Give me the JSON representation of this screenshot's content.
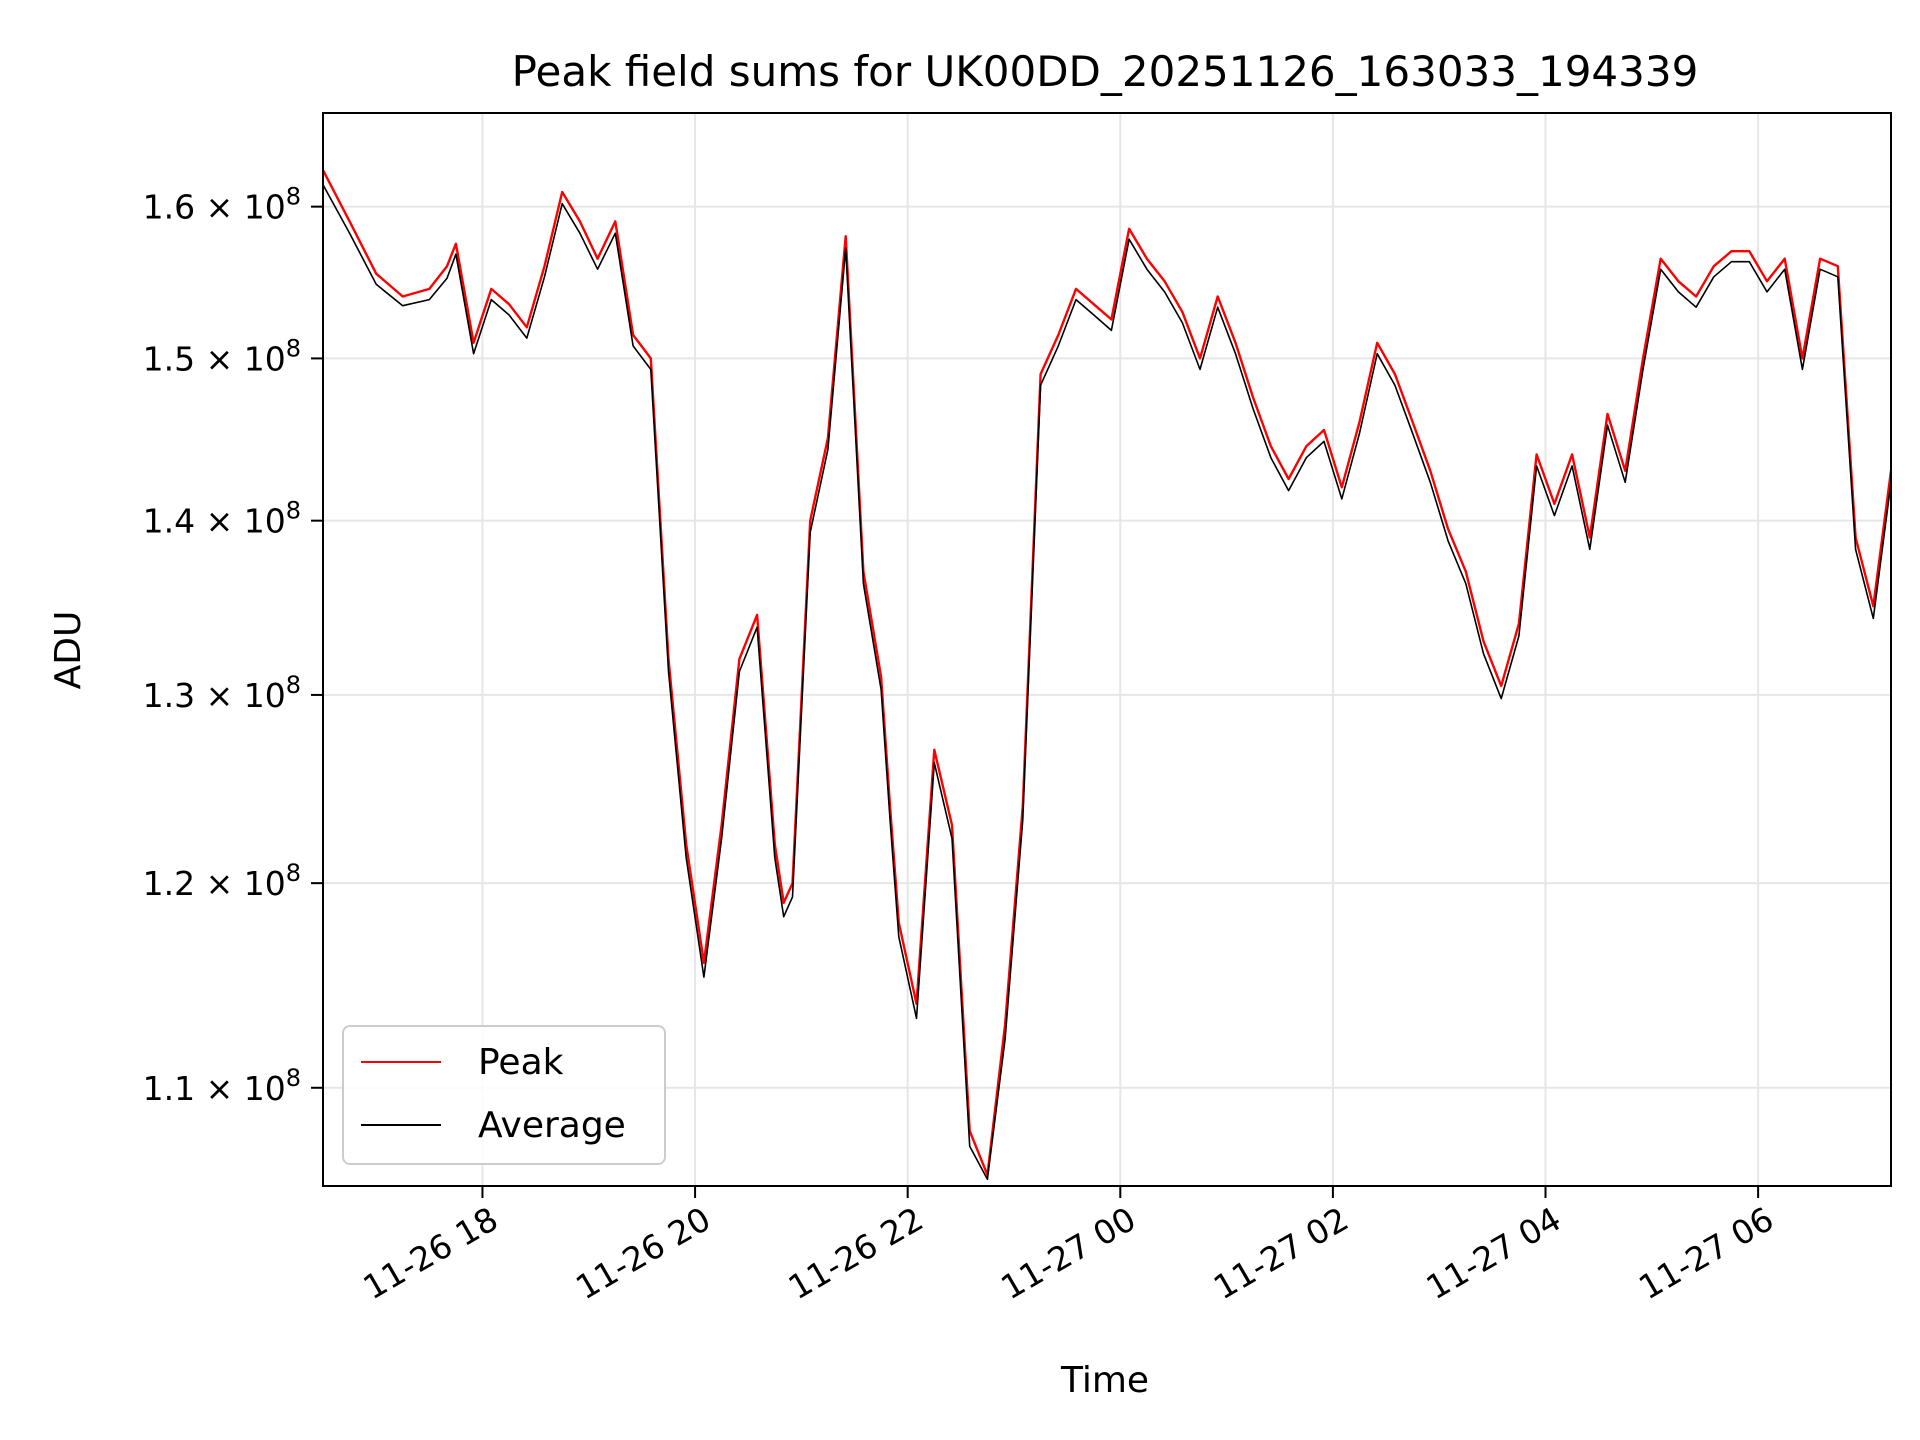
{
  "chart_data": {
    "type": "line",
    "title": "Peak field sums for UK00DD_20251126_163033_194339",
    "xlabel": "Time",
    "ylabel": "ADU",
    "yscale": "log",
    "grid": true,
    "legend_position": "lower-left",
    "xlim": [
      "2025-11-26 16:30",
      "2025-11-27 07:15"
    ],
    "ylim": [
      105500000.0,
      166500000.0
    ],
    "x_ticks": [
      {
        "value": "2025-11-26 18:00",
        "label": "11-26 18"
      },
      {
        "value": "2025-11-26 20:00",
        "label": "11-26 20"
      },
      {
        "value": "2025-11-26 22:00",
        "label": "11-26 22"
      },
      {
        "value": "2025-11-27 00:00",
        "label": "11-27 00"
      },
      {
        "value": "2025-11-27 02:00",
        "label": "11-27 02"
      },
      {
        "value": "2025-11-27 04:00",
        "label": "11-27 04"
      },
      {
        "value": "2025-11-27 06:00",
        "label": "11-27 06"
      }
    ],
    "y_ticks": [
      {
        "value": 110000000.0,
        "mantissa": "1.1",
        "exponent": "8"
      },
      {
        "value": 120000000.0,
        "mantissa": "1.2",
        "exponent": "8"
      },
      {
        "value": 130000000.0,
        "mantissa": "1.3",
        "exponent": "8"
      },
      {
        "value": 140000000.0,
        "mantissa": "1.4",
        "exponent": "8"
      },
      {
        "value": 150000000.0,
        "mantissa": "1.5",
        "exponent": "8"
      },
      {
        "value": 160000000.0,
        "mantissa": "1.6",
        "exponent": "8"
      }
    ],
    "series": [
      {
        "name": "Peak",
        "color": "#ff0000",
        "x": [
          "2025-11-26 16:30",
          "2025-11-26 16:45",
          "2025-11-26 17:00",
          "2025-11-26 17:15",
          "2025-11-26 17:30",
          "2025-11-26 17:40",
          "2025-11-26 17:45",
          "2025-11-26 17:55",
          "2025-11-26 18:05",
          "2025-11-26 18:15",
          "2025-11-26 18:25",
          "2025-11-26 18:35",
          "2025-11-26 18:45",
          "2025-11-26 18:55",
          "2025-11-26 19:05",
          "2025-11-26 19:15",
          "2025-11-26 19:25",
          "2025-11-26 19:35",
          "2025-11-26 19:45",
          "2025-11-26 19:55",
          "2025-11-26 20:05",
          "2025-11-26 20:15",
          "2025-11-26 20:25",
          "2025-11-26 20:35",
          "2025-11-26 20:45",
          "2025-11-26 20:50",
          "2025-11-26 20:55",
          "2025-11-26 21:05",
          "2025-11-26 21:15",
          "2025-11-26 21:25",
          "2025-11-26 21:35",
          "2025-11-26 21:45",
          "2025-11-26 21:50",
          "2025-11-26 21:55",
          "2025-11-26 22:05",
          "2025-11-26 22:15",
          "2025-11-26 22:25",
          "2025-11-26 22:35",
          "2025-11-26 22:45",
          "2025-11-26 22:55",
          "2025-11-26 23:05",
          "2025-11-26 23:15",
          "2025-11-26 23:25",
          "2025-11-26 23:35",
          "2025-11-26 23:45",
          "2025-11-26 23:55",
          "2025-11-27 00:05",
          "2025-11-27 00:15",
          "2025-11-27 00:25",
          "2025-11-27 00:35",
          "2025-11-27 00:45",
          "2025-11-27 00:55",
          "2025-11-27 01:05",
          "2025-11-27 01:15",
          "2025-11-27 01:25",
          "2025-11-27 01:35",
          "2025-11-27 01:45",
          "2025-11-27 01:55",
          "2025-11-27 02:05",
          "2025-11-27 02:15",
          "2025-11-27 02:25",
          "2025-11-27 02:35",
          "2025-11-27 02:45",
          "2025-11-27 02:55",
          "2025-11-27 03:05",
          "2025-11-27 03:15",
          "2025-11-27 03:25",
          "2025-11-27 03:35",
          "2025-11-27 03:45",
          "2025-11-27 03:55",
          "2025-11-27 04:05",
          "2025-11-27 04:15",
          "2025-11-27 04:25",
          "2025-11-27 04:35",
          "2025-11-27 04:45",
          "2025-11-27 04:55",
          "2025-11-27 05:05",
          "2025-11-27 05:15",
          "2025-11-27 05:25",
          "2025-11-27 05:35",
          "2025-11-27 05:45",
          "2025-11-27 05:55",
          "2025-11-27 06:05",
          "2025-11-27 06:15",
          "2025-11-27 06:25",
          "2025-11-27 06:35",
          "2025-11-27 06:45",
          "2025-11-27 06:55",
          "2025-11-27 07:05",
          "2025-11-27 07:15"
        ],
        "values": [
          162500000.0,
          159000000.0,
          155500000.0,
          154000000.0,
          154500000.0,
          156000000.0,
          157500000.0,
          151000000.0,
          154500000.0,
          153500000.0,
          152000000.0,
          156000000.0,
          161000000.0,
          159000000.0,
          156500000.0,
          159000000.0,
          151500000.0,
          150000000.0,
          132000000.0,
          122000000.0,
          116000000.0,
          123000000.0,
          132000000.0,
          134500000.0,
          122000000.0,
          119000000.0,
          120000000.0,
          140000000.0,
          145000000.0,
          158000000.0,
          137000000.0,
          131000000.0,
          124000000.0,
          118000000.0,
          114000000.0,
          127000000.0,
          123000000.0,
          108000000.0,
          106000000.0,
          113000000.0,
          124000000.0,
          149000000.0,
          151500000.0,
          154500000.0,
          153500000.0,
          152500000.0,
          158500000.0,
          156500000.0,
          155000000.0,
          153000000.0,
          150000000.0,
          154000000.0,
          151000000.0,
          147500000.0,
          144500000.0,
          142500000.0,
          144500000.0,
          145500000.0,
          142000000.0,
          146000000.0,
          151000000.0,
          149000000.0,
          146000000.0,
          143000000.0,
          139500000.0,
          137000000.0,
          133000000.0,
          130500000.0,
          134000000.0,
          144000000.0,
          141000000.0,
          144000000.0,
          139000000.0,
          146500000.0,
          143000000.0,
          150000000.0,
          156500000.0,
          155000000.0,
          154000000.0,
          156000000.0,
          157000000.0,
          157000000.0,
          155000000.0,
          156500000.0,
          150000000.0,
          156500000.0,
          156000000.0,
          139000000.0,
          135000000.0,
          143000000.0
        ]
      },
      {
        "name": "Average",
        "color": "#000000",
        "x": [
          "2025-11-26 16:30",
          "2025-11-26 16:45",
          "2025-11-26 17:00",
          "2025-11-26 17:15",
          "2025-11-26 17:30",
          "2025-11-26 17:40",
          "2025-11-26 17:45",
          "2025-11-26 17:55",
          "2025-11-26 18:05",
          "2025-11-26 18:15",
          "2025-11-26 18:25",
          "2025-11-26 18:35",
          "2025-11-26 18:45",
          "2025-11-26 18:55",
          "2025-11-26 19:05",
          "2025-11-26 19:15",
          "2025-11-26 19:25",
          "2025-11-26 19:35",
          "2025-11-26 19:45",
          "2025-11-26 19:55",
          "2025-11-26 20:05",
          "2025-11-26 20:15",
          "2025-11-26 20:25",
          "2025-11-26 20:35",
          "2025-11-26 20:45",
          "2025-11-26 20:50",
          "2025-11-26 20:55",
          "2025-11-26 21:05",
          "2025-11-26 21:15",
          "2025-11-26 21:25",
          "2025-11-26 21:35",
          "2025-11-26 21:45",
          "2025-11-26 21:50",
          "2025-11-26 21:55",
          "2025-11-26 22:05",
          "2025-11-26 22:15",
          "2025-11-26 22:25",
          "2025-11-26 22:35",
          "2025-11-26 22:45",
          "2025-11-26 22:55",
          "2025-11-26 23:05",
          "2025-11-26 23:15",
          "2025-11-26 23:25",
          "2025-11-26 23:35",
          "2025-11-26 23:45",
          "2025-11-26 23:55",
          "2025-11-27 00:05",
          "2025-11-27 00:15",
          "2025-11-27 00:25",
          "2025-11-27 00:35",
          "2025-11-27 00:45",
          "2025-11-27 00:55",
          "2025-11-27 01:05",
          "2025-11-27 01:15",
          "2025-11-27 01:25",
          "2025-11-27 01:35",
          "2025-11-27 01:45",
          "2025-11-27 01:55",
          "2025-11-27 02:05",
          "2025-11-27 02:15",
          "2025-11-27 02:25",
          "2025-11-27 02:35",
          "2025-11-27 02:45",
          "2025-11-27 02:55",
          "2025-11-27 03:05",
          "2025-11-27 03:15",
          "2025-11-27 03:25",
          "2025-11-27 03:35",
          "2025-11-27 03:45",
          "2025-11-27 03:55",
          "2025-11-27 04:05",
          "2025-11-27 04:15",
          "2025-11-27 04:25",
          "2025-11-27 04:35",
          "2025-11-27 04:45",
          "2025-11-27 04:55",
          "2025-11-27 05:05",
          "2025-11-27 05:15",
          "2025-11-27 05:25",
          "2025-11-27 05:35",
          "2025-11-27 05:45",
          "2025-11-27 05:55",
          "2025-11-27 06:05",
          "2025-11-27 06:15",
          "2025-11-27 06:25",
          "2025-11-27 06:35",
          "2025-11-27 06:45",
          "2025-11-27 06:55",
          "2025-11-27 07:05",
          "2025-11-27 07:15"
        ],
        "values": [
          161500000.0,
          158200000.0,
          154800000.0,
          153400000.0,
          153800000.0,
          155200000.0,
          156800000.0,
          150300000.0,
          153800000.0,
          152800000.0,
          151300000.0,
          155300000.0,
          160200000.0,
          158200000.0,
          155800000.0,
          158200000.0,
          150800000.0,
          149300000.0,
          131300000.0,
          121300000.0,
          115300000.0,
          122300000.0,
          131300000.0,
          133800000.0,
          121300000.0,
          118300000.0,
          119300000.0,
          139300000.0,
          144300000.0,
          157200000.0,
          136300000.0,
          130300000.0,
          123300000.0,
          117300000.0,
          113300000.0,
          126300000.0,
          122300000.0,
          107300000.0,
          105800000.0,
          112300000.0,
          123300000.0,
          148300000.0,
          150800000.0,
          153800000.0,
          152800000.0,
          151800000.0,
          157800000.0,
          155800000.0,
          154300000.0,
          152300000.0,
          149300000.0,
          153300000.0,
          150300000.0,
          146800000.0,
          143800000.0,
          141800000.0,
          143800000.0,
          144800000.0,
          141300000.0,
          145300000.0,
          150300000.0,
          148300000.0,
          145300000.0,
          142300000.0,
          138800000.0,
          136300000.0,
          132300000.0,
          129800000.0,
          133300000.0,
          143300000.0,
          140300000.0,
          143300000.0,
          138300000.0,
          145800000.0,
          142300000.0,
          149300000.0,
          155800000.0,
          154300000.0,
          153300000.0,
          155300000.0,
          156300000.0,
          156300000.0,
          154300000.0,
          155800000.0,
          149300000.0,
          155800000.0,
          155300000.0,
          138300000.0,
          134300000.0,
          142300000.0
        ]
      }
    ]
  }
}
